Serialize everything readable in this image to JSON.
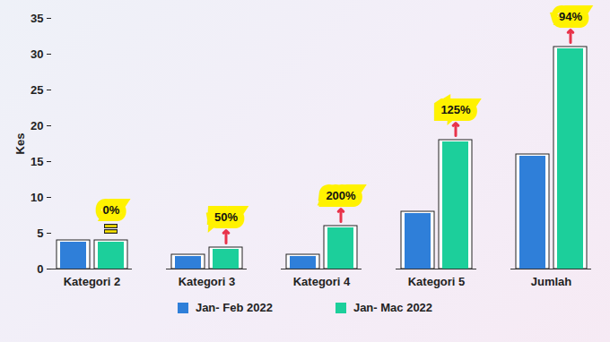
{
  "chart_data": {
    "type": "bar",
    "categories": [
      "Kategori 2",
      "Kategori 3",
      "Kategori 4",
      "Kategori 5",
      "Jumlah"
    ],
    "series": [
      {
        "name": "Jan- Feb 2022",
        "color": "#2f7fd9",
        "values": [
          4,
          2,
          2,
          8,
          16
        ]
      },
      {
        "name": "Jan- Mac 2022",
        "color": "#1ccf9b",
        "values": [
          4,
          3,
          6,
          18,
          31
        ]
      }
    ],
    "y_label": "Kes",
    "ylim": [
      0,
      35
    ],
    "yticks": [
      0,
      5,
      10,
      15,
      20,
      25,
      30,
      35
    ],
    "grid": false,
    "legend": "bottom",
    "data_labels": false,
    "annotations": [
      {
        "category": "Kategori 2",
        "text": "0%"
      },
      {
        "category": "Kategori 3",
        "text": "50%"
      },
      {
        "category": "Kategori 4",
        "text": "200%"
      },
      {
        "category": "Kategori 5",
        "text": "125%"
      },
      {
        "category": "Jumlah",
        "text": "94%"
      }
    ]
  }
}
